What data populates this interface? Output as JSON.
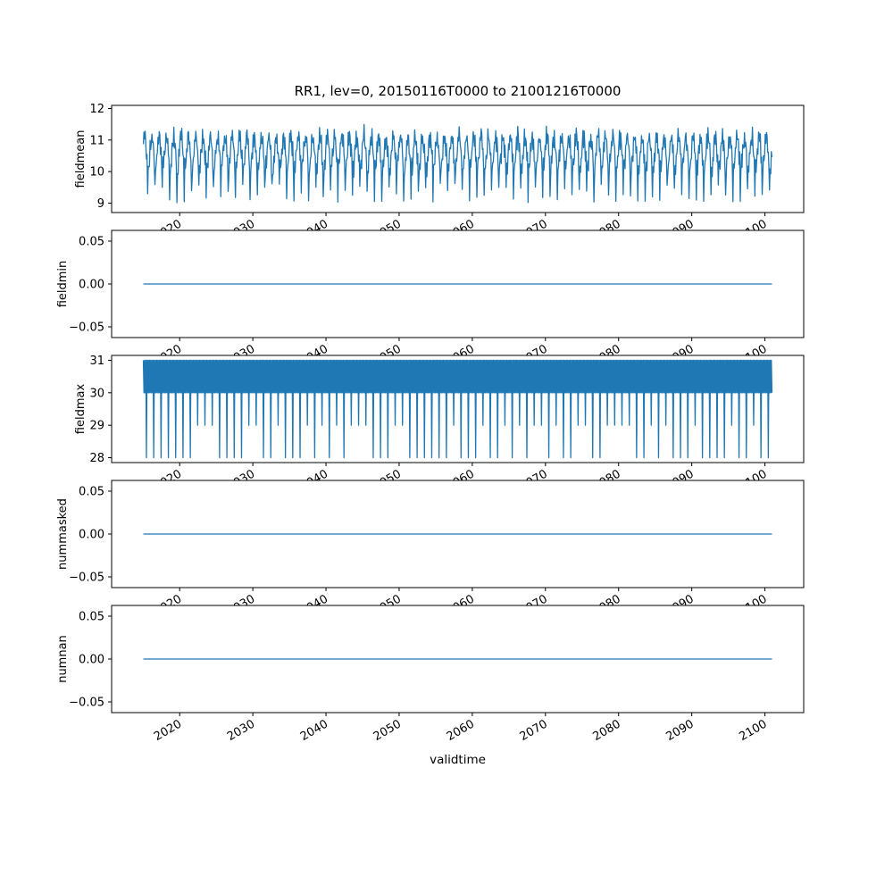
{
  "figure": {
    "title": "RR1, lev=0, 20150116T0000 to 21001216T0000",
    "xlabel": "validtime",
    "background": "#ffffff",
    "line_color": "#1f77b4",
    "axis_color": "#000000",
    "xlim": [
      2010.7,
      2105.3
    ],
    "xticks": [
      2020,
      2030,
      2040,
      2050,
      2060,
      2070,
      2080,
      2090,
      2100
    ]
  },
  "chart_data": [
    {
      "type": "line",
      "name": "fieldmean",
      "ylabel": "fieldmean",
      "x_start": 2015.04,
      "x_end": 2100.96,
      "points_per_year": 12,
      "ylim": [
        8.7,
        12.1
      ],
      "yticks": [
        9,
        10,
        11,
        12
      ],
      "gen": {
        "kind": "seasonal",
        "mean": 10.6,
        "amp_seasonal": 0.5,
        "amp_fast": 0.22,
        "fast_period": 2.6,
        "noise": 0.18,
        "dip_month": 7,
        "dip_low": 9.0,
        "dip_high": 9.65,
        "seed": 20150116
      },
      "description": "Monthly field mean oscillating between about 10 and 11.5 with sharp yearly dips down to 9.0-9.6; extremes roughly 8.9 to 11.95"
    },
    {
      "type": "line",
      "name": "fieldmin",
      "ylabel": "fieldmin",
      "x_start": 2015.04,
      "x_end": 2100.96,
      "points_per_year": 12,
      "ylim": [
        -0.0625,
        0.0625
      ],
      "yticks": [
        -0.05,
        0,
        0.05
      ],
      "gen": {
        "kind": "constant",
        "value": 0
      },
      "description": "Constant 0.00 for the whole period"
    },
    {
      "type": "line",
      "name": "fieldmax",
      "ylabel": "fieldmax",
      "x_start": 2015.04,
      "x_end": 2100.96,
      "points_per_year": 12,
      "ylim": [
        27.85,
        31.15
      ],
      "yticks": [
        28,
        29,
        30,
        31
      ],
      "gen": {
        "kind": "band_dips",
        "high": 31,
        "low": 30,
        "dip_month": 5,
        "dip_values": [
          28,
          29
        ],
        "dip_low_prob": 0.65,
        "seed": 21001216
      },
      "description": "Monthly field max forming a dense band between 30 and 31 with roughly yearly spikes down to 28 or 29"
    },
    {
      "type": "line",
      "name": "nummasked",
      "ylabel": "nummasked",
      "x_start": 2015.04,
      "x_end": 2100.96,
      "points_per_year": 12,
      "ylim": [
        -0.0625,
        0.0625
      ],
      "yticks": [
        -0.05,
        0,
        0.05
      ],
      "gen": {
        "kind": "constant",
        "value": 0
      },
      "description": "Constant 0.00 for the whole period"
    },
    {
      "type": "line",
      "name": "numnan",
      "ylabel": "numnan",
      "x_start": 2015.04,
      "x_end": 2100.96,
      "points_per_year": 12,
      "ylim": [
        -0.0625,
        0.0625
      ],
      "yticks": [
        -0.05,
        0,
        0.05
      ],
      "gen": {
        "kind": "constant",
        "value": 0
      },
      "description": "Constant 0.00 for the whole period"
    }
  ]
}
